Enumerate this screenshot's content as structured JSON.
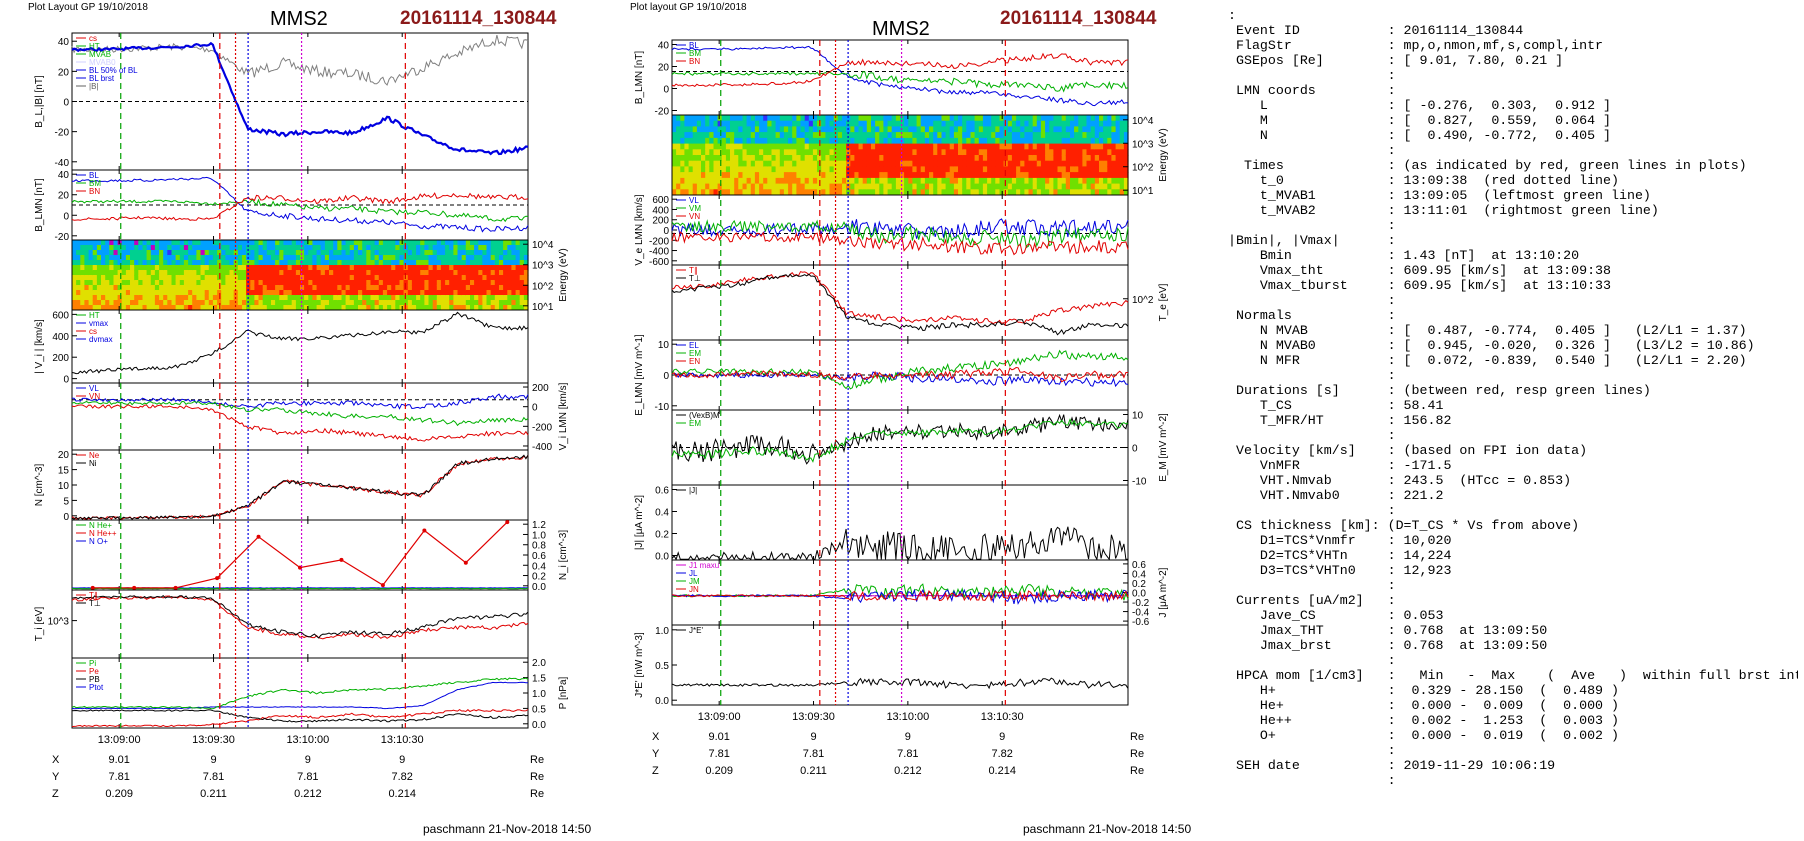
{
  "left": {
    "layout_label": "Plot Layout GP 19/10/2018",
    "spacecraft": "MMS2",
    "event": "20161114_130844",
    "footer": "paschmann 21-Nov-2018 14:50",
    "time_ticks": [
      "13:09:00",
      "13:09:30",
      "13:10:00",
      "13:10:30"
    ],
    "position_rows": [
      {
        "label": "X",
        "values": [
          "9.01",
          "9",
          "9",
          "9"
        ],
        "unit": "Re"
      },
      {
        "label": "Y",
        "values": [
          "7.81",
          "7.81",
          "7.81",
          "7.82"
        ],
        "unit": "Re"
      },
      {
        "label": "Z",
        "values": [
          "0.209",
          "0.211",
          "0.212",
          "0.214"
        ],
        "unit": "Re"
      }
    ],
    "panels": [
      {
        "ylabel": "B_L,|B| [nT]",
        "ylabel_side": "left",
        "ticks": [
          "40",
          "20",
          "0",
          "-20",
          "-40"
        ],
        "legend": [
          {
            "text": "cs",
            "color": "#e00000"
          },
          {
            "text": "HT",
            "color": "#00b000"
          },
          {
            "text": "MVAB",
            "color": "#00b000"
          },
          {
            "text": "MVAB0",
            "color": "#d0d0ff"
          },
          {
            "text": "BL 50% of BL",
            "color": "#0000e0"
          },
          {
            "text": "BL brst",
            "color": "#0000e0"
          },
          {
            "text": "|B|",
            "color": "#606060"
          }
        ]
      },
      {
        "ylabel": "B_LMN [nT]",
        "ylabel_side": "left",
        "ticks": [
          "40",
          "20",
          "0",
          "-20"
        ],
        "legend": [
          {
            "text": "BL",
            "color": "#0000e0"
          },
          {
            "text": "BM",
            "color": "#00b000"
          },
          {
            "text": "BN",
            "color": "#e00000"
          }
        ]
      },
      {
        "ylabel": "Energy (eV)",
        "ylabel_side": "right",
        "ticks": [
          "10^4",
          "10^3",
          "10^2",
          "10^1"
        ],
        "legend": []
      },
      {
        "ylabel": "| V_i | [km/s]",
        "ylabel_side": "left",
        "ticks": [
          "600",
          "400",
          "200",
          "0"
        ],
        "legend": [
          {
            "text": "HT",
            "color": "#00b000"
          },
          {
            "text": "vmax",
            "color": "#0000e0"
          },
          {
            "text": "cs",
            "color": "#e00000"
          },
          {
            "text": "dvmax",
            "color": "#0000e0"
          }
        ]
      },
      {
        "ylabel": "V_i LMN [km/s]",
        "ylabel_side": "right",
        "ticks": [
          "200",
          "0",
          "-200",
          "-400"
        ],
        "legend": [
          {
            "text": "VL",
            "color": "#0000e0"
          },
          {
            "text": "VN",
            "color": "#e00000"
          }
        ]
      },
      {
        "ylabel": "N [cm^-3]",
        "ylabel_side": "left",
        "ticks": [
          "20",
          "15",
          "10",
          "5",
          "0"
        ],
        "legend": [
          {
            "text": "Ne",
            "color": "#e00000"
          },
          {
            "text": "Ni",
            "color": "#000000"
          }
        ]
      },
      {
        "ylabel": "N_i [cm^-3]",
        "ylabel_side": "right",
        "ticks": [
          "1.2",
          "1.0",
          "0.8",
          "0.6",
          "0.4",
          "0.2",
          "0.0"
        ],
        "legend": [
          {
            "text": "N He+",
            "color": "#00b000"
          },
          {
            "text": "N He++",
            "color": "#e00000"
          },
          {
            "text": "N O+",
            "color": "#0000e0"
          }
        ]
      },
      {
        "ylabel": "T_i [eV]",
        "ylabel_side": "left",
        "ticks": [
          "10^3"
        ],
        "legend": [
          {
            "text": "T∥",
            "color": "#e00000"
          },
          {
            "text": "T⊥",
            "color": "#000000"
          }
        ]
      },
      {
        "ylabel": "P [nPa]",
        "ylabel_side": "right",
        "ticks": [
          "2.0",
          "1.5",
          "1.0",
          "0.5",
          "0.0"
        ],
        "legend": [
          {
            "text": "Pi",
            "color": "#00b000"
          },
          {
            "text": "Pe",
            "color": "#e00000"
          },
          {
            "text": "PB",
            "color": "#000000"
          },
          {
            "text": "Ptot",
            "color": "#0000e0"
          }
        ]
      }
    ]
  },
  "right": {
    "layout_label": "Plot layout GP 19/10/2018",
    "spacecraft": "MMS2",
    "event": "20161114_130844",
    "footer": "paschmann 21-Nov-2018 14:50",
    "time_ticks": [
      "13:09:00",
      "13:09:30",
      "13:10:00",
      "13:10:30"
    ],
    "position_rows": [
      {
        "label": "X",
        "values": [
          "9.01",
          "9",
          "9",
          "9"
        ],
        "unit": "Re"
      },
      {
        "label": "Y",
        "values": [
          "7.81",
          "7.81",
          "7.81",
          "7.82"
        ],
        "unit": "Re"
      },
      {
        "label": "Z",
        "values": [
          "0.209",
          "0.211",
          "0.212",
          "0.214"
        ],
        "unit": "Re"
      }
    ],
    "panels": [
      {
        "ylabel": "B_LMN [nT]",
        "ylabel_side": "left",
        "ticks": [
          "40",
          "20",
          "0",
          "-20"
        ],
        "legend": [
          {
            "text": "BL",
            "color": "#0000e0"
          },
          {
            "text": "BM",
            "color": "#00b000"
          },
          {
            "text": "BN",
            "color": "#e00000"
          }
        ]
      },
      {
        "ylabel": "Energy (eV)",
        "ylabel_side": "right",
        "ticks": [
          "10^4",
          "10^3",
          "10^2",
          "10^1"
        ],
        "legend": []
      },
      {
        "ylabel": "V_e LMN [km/s]",
        "ylabel_side": "left",
        "ticks": [
          "600",
          "400",
          "200",
          "0",
          "-200",
          "-400",
          "-600"
        ],
        "legend": [
          {
            "text": "VL",
            "color": "#0000e0"
          },
          {
            "text": "VM",
            "color": "#00b000"
          },
          {
            "text": "VN",
            "color": "#e00000"
          }
        ]
      },
      {
        "ylabel": "T_e [eV]",
        "ylabel_side": "right",
        "ticks": [
          "10^2"
        ],
        "legend": [
          {
            "text": "T∥",
            "color": "#e00000"
          },
          {
            "text": "T⊥",
            "color": "#000000"
          }
        ]
      },
      {
        "ylabel": "E_LMN [mV m^-1]",
        "ylabel_side": "left",
        "ticks": [
          "10",
          "0",
          "-10"
        ],
        "legend": [
          {
            "text": "EL",
            "color": "#0000e0"
          },
          {
            "text": "EM",
            "color": "#00b000"
          },
          {
            "text": "EN",
            "color": "#e00000"
          }
        ]
      },
      {
        "ylabel": "E_M [mV m^-2]",
        "ylabel_side": "right",
        "ticks": [
          "10",
          "0",
          "-10"
        ],
        "legend": [
          {
            "text": "(VexB)M",
            "color": "#000000"
          },
          {
            "text": "EM",
            "color": "#00b000"
          }
        ]
      },
      {
        "ylabel": "|J| [μA m^-2]",
        "ylabel_side": "left",
        "ticks": [
          "0.6",
          "0.4",
          "0.2",
          "0.0"
        ],
        "legend": [
          {
            "text": "|J|",
            "color": "#000000"
          }
        ]
      },
      {
        "ylabel": "J [μA m^-2]",
        "ylabel_side": "right",
        "ticks": [
          "0.6",
          "0.4",
          "0.2",
          "0.0",
          "-0.2",
          "-0.4",
          "-0.6"
        ],
        "legend": [
          {
            "text": "J1 maxu",
            "color": "#d000d0"
          },
          {
            "text": "JL",
            "color": "#0000e0"
          },
          {
            "text": "JM",
            "color": "#00b000"
          },
          {
            "text": "JN",
            "color": "#e00000"
          }
        ]
      },
      {
        "ylabel": "J*E' [nW m^-3]",
        "ylabel_side": "left",
        "ticks": [
          "1.0",
          "0.5",
          "0.0"
        ],
        "legend": [
          {
            "text": "J*E'",
            "color": "#000000"
          }
        ]
      }
    ]
  },
  "chart_data": [
    {
      "type": "line",
      "title": "MMS2",
      "subtitle": "20161114_130844",
      "xlabel": "",
      "categories": [
        "13:09:00",
        "13:09:30",
        "13:10:00",
        "13:10:30"
      ],
      "panels": [
        {
          "name": "B_L,|B| [nT]",
          "ylim": [
            -40,
            40
          ],
          "series": [
            {
              "name": "BL brst",
              "color": "#0000e0",
              "values": [
                30,
                31,
                34,
                -18,
                -20,
                -19,
                -14,
                -30,
                -33
              ]
            },
            {
              "name": "|B|",
              "color": "#606060",
              "values": [
                30,
                31,
                34,
                25,
                24,
                22,
                26,
                35,
                37
              ]
            }
          ]
        },
        {
          "name": "| V_i | [km/s]",
          "ylim": [
            0,
            600
          ],
          "series": [
            {
              "name": "|Vi|",
              "color": "#000000",
              "values": [
                100,
                130,
                220,
                430,
                380,
                400,
                460,
                580,
                470
              ]
            }
          ]
        },
        {
          "name": "N [cm^-3]",
          "ylim": [
            0,
            20
          ],
          "series": [
            {
              "name": "Ne",
              "color": "#e00000",
              "values": [
                0,
                0,
                2,
                12,
                11,
                9,
                6,
                18,
                19
              ]
            },
            {
              "name": "Ni",
              "color": "#000000",
              "values": [
                0,
                0,
                2,
                12,
                11,
                9,
                6,
                18,
                19
              ]
            }
          ]
        },
        {
          "name": "N_i [cm^-3]",
          "ylim": [
            0,
            1.2
          ],
          "series": [
            {
              "name": "N He++",
              "color": "#e00000",
              "values": [
                0.0,
                0.0,
                0.15,
                0.9,
                0.3,
                0.5,
                0.05,
                1.0,
                0.55,
                1.2
              ]
            }
          ]
        }
      ]
    },
    {
      "type": "line",
      "title": "MMS2",
      "subtitle": "20161114_130844",
      "xlabel": "",
      "categories": [
        "13:09:00",
        "13:09:30",
        "13:10:00",
        "13:10:30"
      ],
      "panels": [
        {
          "name": "B_LMN [nT]",
          "ylim": [
            -30,
            40
          ],
          "series": [
            {
              "name": "BL",
              "color": "#0000e0",
              "values": [
                30,
                31,
                33,
                -10,
                -18,
                -20,
                -15,
                -25,
                -25
              ]
            },
            {
              "name": "BM",
              "color": "#00b000",
              "values": [
                0,
                0,
                2,
                5,
                0,
                -5,
                -8,
                -10,
                -12
              ]
            },
            {
              "name": "BN",
              "color": "#e00000",
              "values": [
                -5,
                -5,
                -2,
                5,
                8,
                10,
                12,
                10,
                8
              ]
            }
          ]
        },
        {
          "name": "|J| [μA m^-2]",
          "ylim": [
            0,
            0.6
          ],
          "series": [
            {
              "name": "|J|",
              "color": "#000000",
              "values": [
                0.01,
                0.01,
                0.02,
                0.2,
                0.15,
                0.1,
                0.08,
                0.25,
                0.1
              ]
            }
          ]
        },
        {
          "name": "J*E' [nW m^-3]",
          "ylim": [
            -0.3,
            1.2
          ],
          "series": [
            {
              "name": "J*E'",
              "color": "#000000",
              "values": [
                0,
                0,
                0,
                0.1,
                0.05,
                0,
                0,
                0.1,
                0
              ]
            }
          ]
        }
      ]
    }
  ],
  "summary": [
    ":",
    " Event ID           : 20161114_130844",
    " FlagStr            : mp,o,nmon,mf,s,compl,intr",
    " GSEpos [Re]        : [ 9.01, 7.80, 0.21 ]",
    "                    :",
    " LMN coords         :",
    "    L               : [ -0.276,  0.303,  0.912 ]",
    "    M               : [  0.827,  0.559,  0.064 ]",
    "    N               : [  0.490, -0.772,  0.405 ]",
    "                    :",
    "  Times             : (as indicated by red, green lines in plots)",
    "    t_0             : 13:09:38  (red dotted line)",
    "    t_MVAB1         : 13:09:05  (leftmost green line)",
    "    t_MVAB2         : 13:11:01  (rightmost green line)",
    "                    :",
    "|Bmin|, |Vmax|      :",
    "    Bmin            : 1.43 [nT]  at 13:10:20",
    "    Vmax_tht        : 609.95 [km/s]  at 13:09:38",
    "    Vmax_tburst     : 609.95 [km/s]  at 13:10:33",
    "                    :",
    " Normals            :",
    "    N MVAB          : [  0.487, -0.774,  0.405 ]   (L2/L1 = 1.37)",
    "    N MVAB0         : [  0.945, -0.020,  0.326 ]   (L3/L2 = 10.86)",
    "    N MFR           : [  0.072, -0.839,  0.540 ]   (L2/L1 = 2.20)",
    "                    :",
    " Durations [s]      : (between red, resp green lines)",
    "    T_CS            : 58.41",
    "    T_MFR/HT        : 156.82",
    "                    :",
    " Velocity [km/s]    : (based on FPI ion data)",
    "    VnMFR           : -171.5",
    "    VHT.Nmvab       : 243.5  (HTcc = 0.853)",
    "    VHT.Nmvab0      : 221.2",
    "                    :",
    " CS thickness [km]: (D=T_CS * Vs from above)",
    "    D1=TCS*Vnmfr    : 10,020",
    "    D2=TCS*VHTn     : 14,224",
    "    D3=TCS*VHTn0    : 12,923",
    "                    :",
    " Currents [uA/m2]   :",
    "    Jave_CS         : 0.053",
    "    Jmax_THT        : 0.768  at 13:09:50",
    "    Jmax_brst       : 0.768  at 13:09:50",
    "                    :",
    " HPCA mom [1/cm3]   :   Min   -  Max    (  Ave   )  within full brst int",
    "    H+              :  0.329 - 28.150  (  0.489 )",
    "    He+             :  0.000 -  0.009  (  0.000 )",
    "    He++            :  0.002 -  1.253  (  0.003 )",
    "    O+              :  0.000 -  0.019  (  0.002 )",
    "                    :",
    " SEH date           : 2019-11-29 10:06:19",
    "                    :"
  ]
}
